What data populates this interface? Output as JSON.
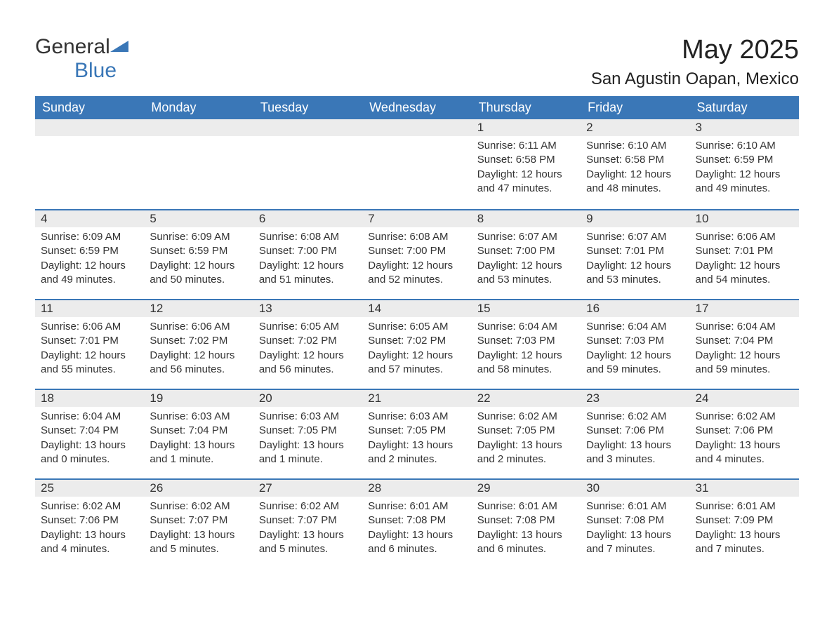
{
  "logo": {
    "text1": "General",
    "text2": "Blue"
  },
  "title": "May 2025",
  "location": "San Agustin Oapan, Mexico",
  "colors": {
    "header_bg": "#3a77b7",
    "header_text": "#ffffff",
    "daynum_bg": "#ececec",
    "border": "#3a77b7",
    "text": "#333333",
    "background": "#ffffff"
  },
  "daysOfWeek": [
    "Sunday",
    "Monday",
    "Tuesday",
    "Wednesday",
    "Thursday",
    "Friday",
    "Saturday"
  ],
  "weeks": [
    [
      {
        "num": "",
        "sunrise": "",
        "sunset": "",
        "daylight": ""
      },
      {
        "num": "",
        "sunrise": "",
        "sunset": "",
        "daylight": ""
      },
      {
        "num": "",
        "sunrise": "",
        "sunset": "",
        "daylight": ""
      },
      {
        "num": "",
        "sunrise": "",
        "sunset": "",
        "daylight": ""
      },
      {
        "num": "1",
        "sunrise": "Sunrise: 6:11 AM",
        "sunset": "Sunset: 6:58 PM",
        "daylight": "Daylight: 12 hours and 47 minutes."
      },
      {
        "num": "2",
        "sunrise": "Sunrise: 6:10 AM",
        "sunset": "Sunset: 6:58 PM",
        "daylight": "Daylight: 12 hours and 48 minutes."
      },
      {
        "num": "3",
        "sunrise": "Sunrise: 6:10 AM",
        "sunset": "Sunset: 6:59 PM",
        "daylight": "Daylight: 12 hours and 49 minutes."
      }
    ],
    [
      {
        "num": "4",
        "sunrise": "Sunrise: 6:09 AM",
        "sunset": "Sunset: 6:59 PM",
        "daylight": "Daylight: 12 hours and 49 minutes."
      },
      {
        "num": "5",
        "sunrise": "Sunrise: 6:09 AM",
        "sunset": "Sunset: 6:59 PM",
        "daylight": "Daylight: 12 hours and 50 minutes."
      },
      {
        "num": "6",
        "sunrise": "Sunrise: 6:08 AM",
        "sunset": "Sunset: 7:00 PM",
        "daylight": "Daylight: 12 hours and 51 minutes."
      },
      {
        "num": "7",
        "sunrise": "Sunrise: 6:08 AM",
        "sunset": "Sunset: 7:00 PM",
        "daylight": "Daylight: 12 hours and 52 minutes."
      },
      {
        "num": "8",
        "sunrise": "Sunrise: 6:07 AM",
        "sunset": "Sunset: 7:00 PM",
        "daylight": "Daylight: 12 hours and 53 minutes."
      },
      {
        "num": "9",
        "sunrise": "Sunrise: 6:07 AM",
        "sunset": "Sunset: 7:01 PM",
        "daylight": "Daylight: 12 hours and 53 minutes."
      },
      {
        "num": "10",
        "sunrise": "Sunrise: 6:06 AM",
        "sunset": "Sunset: 7:01 PM",
        "daylight": "Daylight: 12 hours and 54 minutes."
      }
    ],
    [
      {
        "num": "11",
        "sunrise": "Sunrise: 6:06 AM",
        "sunset": "Sunset: 7:01 PM",
        "daylight": "Daylight: 12 hours and 55 minutes."
      },
      {
        "num": "12",
        "sunrise": "Sunrise: 6:06 AM",
        "sunset": "Sunset: 7:02 PM",
        "daylight": "Daylight: 12 hours and 56 minutes."
      },
      {
        "num": "13",
        "sunrise": "Sunrise: 6:05 AM",
        "sunset": "Sunset: 7:02 PM",
        "daylight": "Daylight: 12 hours and 56 minutes."
      },
      {
        "num": "14",
        "sunrise": "Sunrise: 6:05 AM",
        "sunset": "Sunset: 7:02 PM",
        "daylight": "Daylight: 12 hours and 57 minutes."
      },
      {
        "num": "15",
        "sunrise": "Sunrise: 6:04 AM",
        "sunset": "Sunset: 7:03 PM",
        "daylight": "Daylight: 12 hours and 58 minutes."
      },
      {
        "num": "16",
        "sunrise": "Sunrise: 6:04 AM",
        "sunset": "Sunset: 7:03 PM",
        "daylight": "Daylight: 12 hours and 59 minutes."
      },
      {
        "num": "17",
        "sunrise": "Sunrise: 6:04 AM",
        "sunset": "Sunset: 7:04 PM",
        "daylight": "Daylight: 12 hours and 59 minutes."
      }
    ],
    [
      {
        "num": "18",
        "sunrise": "Sunrise: 6:04 AM",
        "sunset": "Sunset: 7:04 PM",
        "daylight": "Daylight: 13 hours and 0 minutes."
      },
      {
        "num": "19",
        "sunrise": "Sunrise: 6:03 AM",
        "sunset": "Sunset: 7:04 PM",
        "daylight": "Daylight: 13 hours and 1 minute."
      },
      {
        "num": "20",
        "sunrise": "Sunrise: 6:03 AM",
        "sunset": "Sunset: 7:05 PM",
        "daylight": "Daylight: 13 hours and 1 minute."
      },
      {
        "num": "21",
        "sunrise": "Sunrise: 6:03 AM",
        "sunset": "Sunset: 7:05 PM",
        "daylight": "Daylight: 13 hours and 2 minutes."
      },
      {
        "num": "22",
        "sunrise": "Sunrise: 6:02 AM",
        "sunset": "Sunset: 7:05 PM",
        "daylight": "Daylight: 13 hours and 2 minutes."
      },
      {
        "num": "23",
        "sunrise": "Sunrise: 6:02 AM",
        "sunset": "Sunset: 7:06 PM",
        "daylight": "Daylight: 13 hours and 3 minutes."
      },
      {
        "num": "24",
        "sunrise": "Sunrise: 6:02 AM",
        "sunset": "Sunset: 7:06 PM",
        "daylight": "Daylight: 13 hours and 4 minutes."
      }
    ],
    [
      {
        "num": "25",
        "sunrise": "Sunrise: 6:02 AM",
        "sunset": "Sunset: 7:06 PM",
        "daylight": "Daylight: 13 hours and 4 minutes."
      },
      {
        "num": "26",
        "sunrise": "Sunrise: 6:02 AM",
        "sunset": "Sunset: 7:07 PM",
        "daylight": "Daylight: 13 hours and 5 minutes."
      },
      {
        "num": "27",
        "sunrise": "Sunrise: 6:02 AM",
        "sunset": "Sunset: 7:07 PM",
        "daylight": "Daylight: 13 hours and 5 minutes."
      },
      {
        "num": "28",
        "sunrise": "Sunrise: 6:01 AM",
        "sunset": "Sunset: 7:08 PM",
        "daylight": "Daylight: 13 hours and 6 minutes."
      },
      {
        "num": "29",
        "sunrise": "Sunrise: 6:01 AM",
        "sunset": "Sunset: 7:08 PM",
        "daylight": "Daylight: 13 hours and 6 minutes."
      },
      {
        "num": "30",
        "sunrise": "Sunrise: 6:01 AM",
        "sunset": "Sunset: 7:08 PM",
        "daylight": "Daylight: 13 hours and 7 minutes."
      },
      {
        "num": "31",
        "sunrise": "Sunrise: 6:01 AM",
        "sunset": "Sunset: 7:09 PM",
        "daylight": "Daylight: 13 hours and 7 minutes."
      }
    ]
  ]
}
